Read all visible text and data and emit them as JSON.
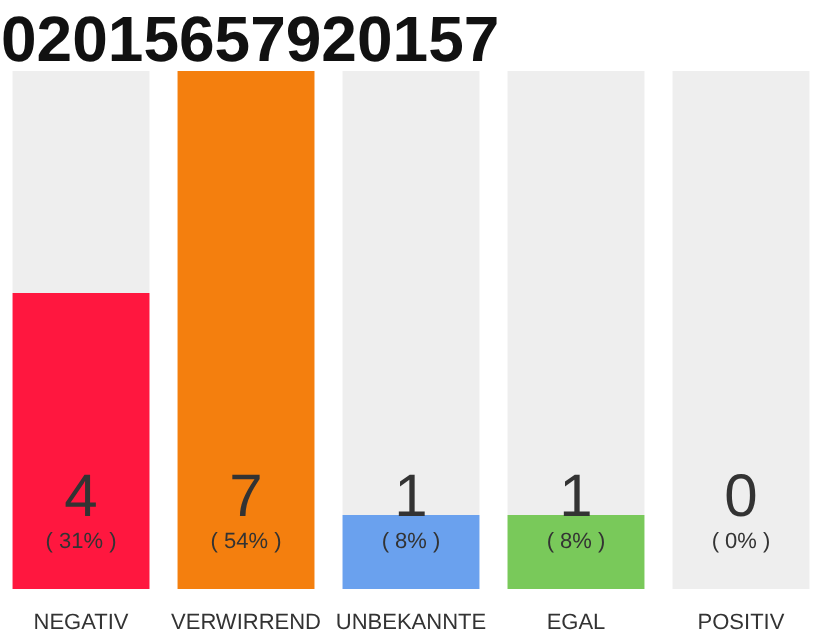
{
  "chart_data": {
    "type": "bar",
    "title": "02015657920157",
    "stacked": true,
    "categories": [
      "NEGATIV",
      "VERWIRREND",
      "UNBEKANNTE",
      "EGAL",
      "POSITIV"
    ],
    "series": [
      {
        "colors": [
          "#ff173f",
          "#f47f0e",
          "#6aa1ee",
          "#79c95a",
          "#eeeeee"
        ],
        "values": [
          4,
          7,
          1,
          1,
          0
        ],
        "value_labels": [
          "4",
          "7",
          "1",
          "1",
          null
        ]
      },
      {
        "color": "#eeeeee",
        "values": [
          3,
          0,
          6,
          6,
          7
        ]
      }
    ],
    "annotations": [
      "( 31% )",
      "( 54% )",
      "( 8% )",
      "( 8% )",
      "( 0% )",
      {
        "text": "0",
        "x": "POSITIV",
        "y": 0
      }
    ],
    "grid": false
  }
}
